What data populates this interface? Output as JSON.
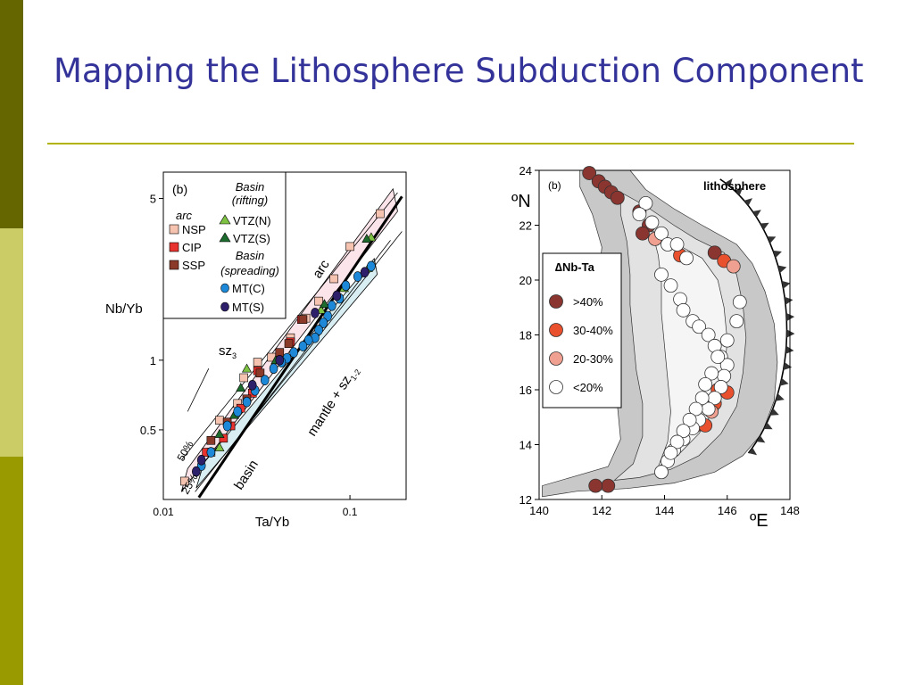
{
  "slide": {
    "title": "Mapping the Lithosphere Subduction Component"
  },
  "colors": {
    "bar_top": "#666600",
    "bar_middle": "#cccc66",
    "bar_bottom": "#999900",
    "title": "#333399",
    "rule": "#b2b200"
  },
  "chart_data": [
    {
      "type": "scatter",
      "panel_label": "(b)",
      "xlabel": "Ta/Yb",
      "ylabel": "Nb/Yb",
      "x_scale": "log",
      "y_scale": "log",
      "xlim": [
        0.01,
        0.2
      ],
      "ylim": [
        0.25,
        6.5
      ],
      "x_ticks": [
        {
          "value": 0.01,
          "label": "0.01"
        },
        {
          "value": 0.1,
          "label": "0.1"
        }
      ],
      "y_ticks": [
        {
          "value": 5,
          "label": "5"
        },
        {
          "value": 1,
          "label": "1"
        },
        {
          "value": 0.5,
          "label": "0.5"
        }
      ],
      "legend": {
        "placement": "top-left",
        "groups": [
          {
            "heading": "arc",
            "entries": [
              {
                "label": "NSP",
                "marker": "square",
                "color": "#f5c3b0"
              },
              {
                "label": "CIP",
                "marker": "square",
                "color": "#e8322e"
              },
              {
                "label": "SSP",
                "marker": "square",
                "color": "#8b3a2a"
              }
            ]
          },
          {
            "heading": "Basin",
            "subheading": "(rifting)",
            "entries": [
              {
                "label": "VTZ(N)",
                "marker": "triangle",
                "color": "#7dc242"
              },
              {
                "label": "VTZ(S)",
                "marker": "triangle",
                "color": "#1e6b2e"
              }
            ]
          },
          {
            "heading": "Basin",
            "subheading": "(spreading)",
            "entries": [
              {
                "label": "MT(C)",
                "marker": "circle",
                "color": "#1e88d8"
              },
              {
                "label": "MT(S)",
                "marker": "circle",
                "color": "#2e1f6b"
              }
            ]
          }
        ]
      },
      "annotations": [
        {
          "text": "arc"
        },
        {
          "text": "basin"
        },
        {
          "text": "mantle + sz",
          "subscript": "1-2"
        },
        {
          "text": "sz",
          "subscript": "3"
        },
        {
          "text": "50%"
        },
        {
          "text": "25%"
        }
      ],
      "series": [
        {
          "name": "NSP",
          "points": [
            [
              0.145,
              4.3
            ],
            [
              0.1,
              3.1
            ],
            [
              0.082,
              2.25
            ],
            [
              0.068,
              1.8
            ],
            [
              0.058,
              1.52
            ],
            [
              0.048,
              1.25
            ],
            [
              0.038,
              1.03
            ],
            [
              0.032,
              0.98
            ],
            [
              0.027,
              0.84
            ],
            [
              0.025,
              0.65
            ],
            [
              0.02,
              0.55
            ],
            [
              0.018,
              0.4
            ],
            [
              0.013,
              0.3
            ]
          ]
        },
        {
          "name": "CIP",
          "points": [
            [
              0.055,
              1.5
            ],
            [
              0.048,
              1.2
            ],
            [
              0.032,
              0.9
            ],
            [
              0.03,
              0.72
            ],
            [
              0.026,
              0.62
            ],
            [
              0.023,
              0.52
            ],
            [
              0.021,
              0.46
            ],
            [
              0.017,
              0.4
            ]
          ]
        },
        {
          "name": "SSP",
          "points": [
            [
              0.056,
              1.5
            ],
            [
              0.047,
              1.18
            ],
            [
              0.042,
              1.08
            ],
            [
              0.033,
              0.88
            ],
            [
              0.028,
              0.68
            ],
            [
              0.022,
              0.54
            ],
            [
              0.018,
              0.45
            ]
          ]
        },
        {
          "name": "VTZ(N)",
          "points": [
            [
              0.13,
              3.4
            ],
            [
              0.125,
              2.5
            ],
            [
              0.093,
              2.05
            ],
            [
              0.07,
              1.65
            ],
            [
              0.028,
              0.92
            ],
            [
              0.02,
              0.42
            ]
          ]
        },
        {
          "name": "VTZ(S)",
          "points": [
            [
              0.123,
              3.35
            ],
            [
              0.073,
              1.75
            ],
            [
              0.04,
              1.0
            ],
            [
              0.026,
              0.76
            ],
            [
              0.024,
              0.58
            ],
            [
              0.02,
              0.48
            ]
          ]
        },
        {
          "name": "MT(C)",
          "points": [
            [
              0.13,
              2.55
            ],
            [
              0.11,
              2.3
            ],
            [
              0.095,
              2.1
            ],
            [
              0.088,
              1.85
            ],
            [
              0.08,
              1.72
            ],
            [
              0.076,
              1.55
            ],
            [
              0.072,
              1.45
            ],
            [
              0.068,
              1.35
            ],
            [
              0.065,
              1.25
            ],
            [
              0.06,
              1.22
            ],
            [
              0.056,
              1.15
            ],
            [
              0.05,
              1.08
            ],
            [
              0.046,
              1.02
            ],
            [
              0.043,
              0.98
            ],
            [
              0.039,
              0.92
            ],
            [
              0.035,
              0.82
            ],
            [
              0.031,
              0.74
            ],
            [
              0.028,
              0.66
            ],
            [
              0.025,
              0.6
            ],
            [
              0.022,
              0.52
            ],
            [
              0.018,
              0.4
            ],
            [
              0.016,
              0.35
            ]
          ]
        },
        {
          "name": "MT(S)",
          "points": [
            [
              0.12,
              2.4
            ],
            [
              0.085,
              1.9
            ],
            [
              0.065,
              1.6
            ],
            [
              0.042,
              1.0
            ],
            [
              0.03,
              0.78
            ],
            [
              0.016,
              0.37
            ],
            [
              0.015,
              0.33
            ]
          ]
        }
      ]
    },
    {
      "type": "scatter",
      "panel_label": "(b)",
      "xlabel": "ºE",
      "ylabel": "ºN",
      "xlim": [
        140,
        148
      ],
      "ylim": [
        12,
        24
      ],
      "x_ticks": [
        {
          "value": 140,
          "label": "140"
        },
        {
          "value": 142,
          "label": "142"
        },
        {
          "value": 144,
          "label": "144"
        },
        {
          "value": 146,
          "label": "146"
        },
        {
          "value": 148,
          "label": "148"
        }
      ],
      "y_ticks": [
        {
          "value": 12,
          "label": "12"
        },
        {
          "value": 14,
          "label": "14"
        },
        {
          "value": 16,
          "label": "16"
        },
        {
          "value": 18,
          "label": "18"
        },
        {
          "value": 20,
          "label": "20"
        },
        {
          "value": 22,
          "label": "22"
        },
        {
          "value": 24,
          "label": "24"
        }
      ],
      "region_label": "lithosphere",
      "legend": {
        "placement": "left",
        "title": "∆Nb-Ta",
        "entries": [
          {
            "label": ">40%",
            "color": "#8b3530"
          },
          {
            "label": "30-40%",
            "color": "#e8502e"
          },
          {
            "label": "20-30%",
            "color": "#f0a090"
          },
          {
            "label": "<20%",
            "color": "#ffffff"
          }
        ]
      },
      "series": [
        {
          "name": ">40%",
          "points": [
            [
              141.6,
              23.9
            ],
            [
              141.9,
              23.6
            ],
            [
              142.1,
              23.4
            ],
            [
              142.3,
              23.2
            ],
            [
              142.5,
              23.0
            ],
            [
              143.2,
              22.5
            ],
            [
              143.5,
              22.0
            ],
            [
              143.3,
              21.7
            ],
            [
              145.6,
              21.0
            ],
            [
              142.2,
              12.5
            ],
            [
              141.8,
              12.5
            ],
            [
              145.5,
              15.3
            ]
          ]
        },
        {
          "name": "30-40%",
          "points": [
            [
              144.5,
              20.9
            ],
            [
              145.9,
              20.7
            ],
            [
              145.7,
              16.0
            ],
            [
              146.0,
              15.9
            ],
            [
              145.0,
              14.7
            ],
            [
              145.3,
              14.7
            ],
            [
              145.6,
              15.5
            ]
          ]
        },
        {
          "name": "20-30%",
          "points": [
            [
              143.7,
              21.5
            ],
            [
              146.2,
              20.5
            ],
            [
              145.5,
              15.2
            ]
          ]
        },
        {
          "name": "<20%",
          "points": [
            [
              143.4,
              22.8
            ],
            [
              143.2,
              22.4
            ],
            [
              143.6,
              22.1
            ],
            [
              143.9,
              21.7
            ],
            [
              144.1,
              21.3
            ],
            [
              144.4,
              21.3
            ],
            [
              144.7,
              20.8
            ],
            [
              143.9,
              20.2
            ],
            [
              144.2,
              19.8
            ],
            [
              144.5,
              19.3
            ],
            [
              144.6,
              18.9
            ],
            [
              144.9,
              18.5
            ],
            [
              145.1,
              18.3
            ],
            [
              145.4,
              18.0
            ],
            [
              145.6,
              17.6
            ],
            [
              145.8,
              17.2
            ],
            [
              146.0,
              16.9
            ],
            [
              145.9,
              16.5
            ],
            [
              145.8,
              16.1
            ],
            [
              145.6,
              15.7
            ],
            [
              145.4,
              15.3
            ],
            [
              145.1,
              14.9
            ],
            [
              144.9,
              14.6
            ],
            [
              144.6,
              14.2
            ],
            [
              144.3,
              13.8
            ],
            [
              144.1,
              13.4
            ],
            [
              143.9,
              13.0
            ],
            [
              146.4,
              19.2
            ],
            [
              146.3,
              18.5
            ],
            [
              146.0,
              17.8
            ],
            [
              145.7,
              17.2
            ],
            [
              145.5,
              16.6
            ],
            [
              145.3,
              16.2
            ],
            [
              145.2,
              15.7
            ],
            [
              145.0,
              15.3
            ],
            [
              144.8,
              14.9
            ],
            [
              144.6,
              14.5
            ],
            [
              144.4,
              14.1
            ],
            [
              144.2,
              13.7
            ]
          ]
        }
      ]
    }
  ]
}
